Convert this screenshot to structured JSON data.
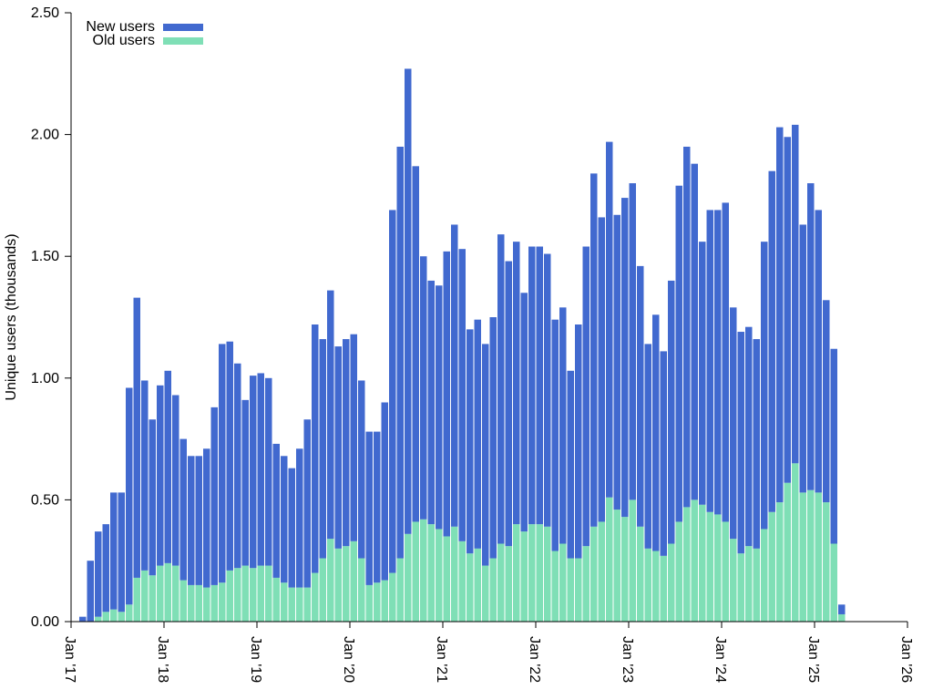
{
  "chart_data": {
    "type": "bar",
    "stacked": true,
    "ylabel": "Unique users (thousands)",
    "xlabel": "",
    "ylim": [
      0,
      2.5
    ],
    "yticks": [
      "0.00",
      "0.50",
      "1.00",
      "1.50",
      "2.00",
      "2.50"
    ],
    "xticks": [
      "Jan '17",
      "Jan '18",
      "Jan '19",
      "Jan '20",
      "Jan '21",
      "Jan '22",
      "Jan '23",
      "Jan '24",
      "Jan '25",
      "Jan '26"
    ],
    "xlim": [
      "2017-01",
      "2026-01"
    ],
    "legend_position": "top-left",
    "x": [
      "2017-02",
      "2017-03",
      "2017-04",
      "2017-05",
      "2017-06",
      "2017-07",
      "2017-08",
      "2017-09",
      "2017-10",
      "2017-11",
      "2017-12",
      "2018-01",
      "2018-02",
      "2018-03",
      "2018-04",
      "2018-05",
      "2018-06",
      "2018-07",
      "2018-08",
      "2018-09",
      "2018-10",
      "2018-11",
      "2018-12",
      "2019-01",
      "2019-02",
      "2019-03",
      "2019-04",
      "2019-05",
      "2019-06",
      "2019-07",
      "2019-08",
      "2019-09",
      "2019-10",
      "2019-11",
      "2019-12",
      "2020-01",
      "2020-02",
      "2020-03",
      "2020-04",
      "2020-05",
      "2020-06",
      "2020-07",
      "2020-08",
      "2020-09",
      "2020-10",
      "2020-11",
      "2020-12",
      "2021-01",
      "2021-02",
      "2021-03",
      "2021-04",
      "2021-05",
      "2021-06",
      "2021-07",
      "2021-08",
      "2021-09",
      "2021-10",
      "2021-11",
      "2021-12",
      "2022-01",
      "2022-02",
      "2022-03",
      "2022-04",
      "2022-05",
      "2022-06",
      "2022-07",
      "2022-08",
      "2022-09",
      "2022-10",
      "2022-11",
      "2022-12",
      "2023-01",
      "2023-02",
      "2023-03",
      "2023-04",
      "2023-05",
      "2023-06",
      "2023-07",
      "2023-08",
      "2023-09",
      "2023-10",
      "2023-11",
      "2023-12",
      "2024-01",
      "2024-02",
      "2024-03",
      "2024-04",
      "2024-05",
      "2024-06",
      "2024-07",
      "2024-08",
      "2024-09",
      "2024-10",
      "2024-11",
      "2024-12",
      "2025-01",
      "2025-02",
      "2025-03",
      "2025-04"
    ],
    "series": [
      {
        "name": "Old users",
        "color": "#7fdfb6",
        "values": [
          0.0,
          0.0,
          0.02,
          0.04,
          0.05,
          0.04,
          0.07,
          0.18,
          0.21,
          0.19,
          0.23,
          0.24,
          0.23,
          0.17,
          0.15,
          0.15,
          0.14,
          0.15,
          0.16,
          0.21,
          0.22,
          0.23,
          0.22,
          0.23,
          0.23,
          0.18,
          0.16,
          0.14,
          0.14,
          0.14,
          0.2,
          0.26,
          0.34,
          0.3,
          0.31,
          0.33,
          0.26,
          0.15,
          0.16,
          0.17,
          0.2,
          0.26,
          0.36,
          0.41,
          0.42,
          0.4,
          0.38,
          0.35,
          0.39,
          0.33,
          0.28,
          0.3,
          0.23,
          0.26,
          0.32,
          0.31,
          0.4,
          0.37,
          0.4,
          0.4,
          0.39,
          0.29,
          0.32,
          0.26,
          0.26,
          0.31,
          0.39,
          0.41,
          0.51,
          0.46,
          0.43,
          0.5,
          0.39,
          0.3,
          0.29,
          0.27,
          0.32,
          0.41,
          0.47,
          0.5,
          0.48,
          0.45,
          0.44,
          0.41,
          0.34,
          0.28,
          0.31,
          0.3,
          0.38,
          0.45,
          0.49,
          0.57,
          0.65,
          0.53,
          0.54,
          0.53,
          0.49,
          0.32,
          0.03
        ]
      },
      {
        "name": "New users",
        "color": "#4169cf",
        "values": [
          0.02,
          0.25,
          0.35,
          0.36,
          0.48,
          0.49,
          0.89,
          1.15,
          0.78,
          0.64,
          0.74,
          0.79,
          0.7,
          0.58,
          0.53,
          0.53,
          0.57,
          0.73,
          0.98,
          0.94,
          0.84,
          0.68,
          0.79,
          0.79,
          0.77,
          0.55,
          0.52,
          0.49,
          0.57,
          0.69,
          1.02,
          0.9,
          1.02,
          0.83,
          0.85,
          0.85,
          0.73,
          0.63,
          0.62,
          0.73,
          1.49,
          1.69,
          1.91,
          1.46,
          1.08,
          1.0,
          1.0,
          1.17,
          1.24,
          1.2,
          0.92,
          0.94,
          0.91,
          0.99,
          1.27,
          1.17,
          1.16,
          0.98,
          1.14,
          1.14,
          1.12,
          0.95,
          0.97,
          0.77,
          0.96,
          1.23,
          1.45,
          1.25,
          1.46,
          1.21,
          1.31,
          1.3,
          1.07,
          0.84,
          0.97,
          0.84,
          1.08,
          1.38,
          1.48,
          1.38,
          1.08,
          1.24,
          1.25,
          1.31,
          0.95,
          0.91,
          0.9,
          0.86,
          1.18,
          1.4,
          1.54,
          1.42,
          1.39,
          1.1,
          1.26,
          1.16,
          0.83,
          0.8,
          0.04
        ]
      }
    ]
  },
  "legend": {
    "items": [
      {
        "label": "New users",
        "color": "#4169cf"
      },
      {
        "label": "Old users",
        "color": "#7fdfb6"
      }
    ]
  }
}
